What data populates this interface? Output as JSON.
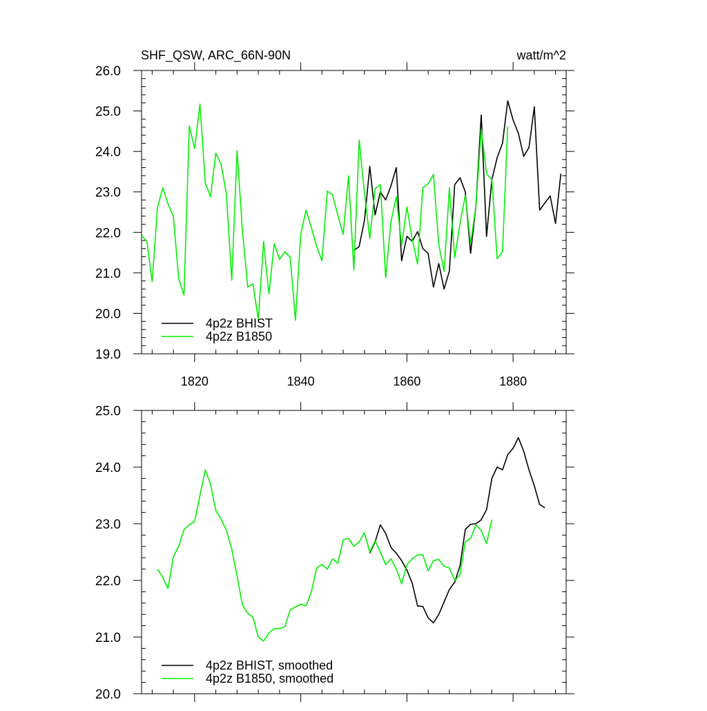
{
  "header": {
    "variable_title": "SHF_QSW, ARC_66N-90N",
    "units": "watt/m^2"
  },
  "colors": {
    "bhist": "#000000",
    "b1850": "#00ee00",
    "axis": "#000000",
    "background": "#ffffff"
  },
  "chart_data": [
    {
      "type": "line",
      "title": "SHF_QSW, ARC_66N-90N",
      "units": "watt/m^2",
      "xlabel": "",
      "ylabel": "",
      "xlim": [
        1810,
        1890
      ],
      "ylim": [
        19.0,
        26.0
      ],
      "xticks": [
        1820,
        1840,
        1860,
        1880
      ],
      "xtick_labels": [
        "1820",
        "1840",
        "1860",
        "1880"
      ],
      "yticks": [
        19,
        20,
        21,
        22,
        23,
        24,
        25,
        26
      ],
      "ytick_labels": [
        "19.0",
        "20.0",
        "21.0",
        "22.0",
        "23.0",
        "24.0",
        "25.0",
        "26.0"
      ],
      "legend_position": "bottom-left",
      "grid": false,
      "series": [
        {
          "name": "4p2z BHIST",
          "color": "#000000",
          "x": [
            1850,
            1851,
            1852,
            1853,
            1854,
            1855,
            1856,
            1857,
            1858,
            1859,
            1860,
            1861,
            1862,
            1863,
            1864,
            1865,
            1866,
            1867,
            1868,
            1869,
            1870,
            1871,
            1872,
            1873,
            1874,
            1875,
            1876,
            1877,
            1878,
            1879,
            1880,
            1881,
            1882,
            1883,
            1884,
            1885,
            1886,
            1887,
            1888,
            1889
          ],
          "values": [
            21.55,
            21.65,
            22.3,
            23.63,
            22.43,
            23.0,
            22.8,
            23.15,
            23.6,
            21.3,
            21.9,
            21.78,
            22.02,
            21.6,
            21.48,
            20.65,
            21.23,
            20.6,
            21.05,
            23.18,
            23.35,
            23.0,
            21.48,
            22.65,
            24.9,
            21.9,
            23.3,
            23.85,
            24.2,
            25.25,
            24.78,
            24.45,
            23.88,
            24.1,
            25.1,
            22.55,
            22.73,
            22.9,
            22.22,
            23.45
          ]
        },
        {
          "name": "4p2z B1850",
          "color": "#00ee00",
          "x": [
            1810,
            1811,
            1812,
            1813,
            1814,
            1815,
            1816,
            1817,
            1818,
            1819,
            1820,
            1821,
            1822,
            1823,
            1824,
            1825,
            1826,
            1827,
            1828,
            1829,
            1830,
            1831,
            1832,
            1833,
            1834,
            1835,
            1836,
            1837,
            1838,
            1839,
            1840,
            1841,
            1842,
            1843,
            1844,
            1845,
            1846,
            1847,
            1848,
            1849,
            1850,
            1851,
            1852,
            1853,
            1854,
            1855,
            1856,
            1857,
            1858,
            1859,
            1860,
            1861,
            1862,
            1863,
            1864,
            1865,
            1866,
            1867,
            1868,
            1869,
            1870,
            1871,
            1872,
            1873,
            1874,
            1875,
            1876,
            1877,
            1878,
            1879
          ],
          "values": [
            21.92,
            21.78,
            20.78,
            22.62,
            23.1,
            22.7,
            22.4,
            20.85,
            20.45,
            24.63,
            24.07,
            25.17,
            23.22,
            22.88,
            23.96,
            23.68,
            22.93,
            20.82,
            24.02,
            22.05,
            20.65,
            20.73,
            19.85,
            21.78,
            20.48,
            21.72,
            21.33,
            21.52,
            21.38,
            19.83,
            21.95,
            22.55,
            22.12,
            21.65,
            21.3,
            23.02,
            22.92,
            22.42,
            21.95,
            23.4,
            21.07,
            24.28,
            22.97,
            21.85,
            23.08,
            23.18,
            20.88,
            22.27,
            22.88,
            21.68,
            22.63,
            21.82,
            21.22,
            23.1,
            23.2,
            23.43,
            21.7,
            21.03,
            23.1,
            21.37,
            22.22,
            22.92,
            21.72,
            22.65,
            24.55,
            23.45,
            23.3,
            21.35,
            21.52,
            24.62
          ]
        }
      ]
    },
    {
      "type": "line",
      "title": "",
      "xlabel": "",
      "ylabel": "",
      "xlim": [
        1810,
        1890
      ],
      "ylim": [
        20.0,
        25.0
      ],
      "xticks": [
        1820,
        1840,
        1860,
        1880
      ],
      "xtick_labels": [],
      "yticks": [
        20,
        21,
        22,
        23,
        24,
        25
      ],
      "ytick_labels": [
        "20.0",
        "21.0",
        "22.0",
        "23.0",
        "24.0",
        "25.0"
      ],
      "legend_position": "bottom-left",
      "grid": false,
      "series": [
        {
          "name": "4p2z BHIST, smoothed",
          "color": "#000000",
          "x": [
            1853,
            1854,
            1855,
            1856,
            1857,
            1858,
            1859,
            1860,
            1861,
            1862,
            1863,
            1864,
            1865,
            1866,
            1867,
            1868,
            1869,
            1870,
            1871,
            1872,
            1873,
            1874,
            1875,
            1876,
            1877,
            1878,
            1879,
            1880,
            1881,
            1882,
            1883,
            1884,
            1885,
            1886
          ],
          "values": [
            22.48,
            22.68,
            22.98,
            22.83,
            22.58,
            22.48,
            22.35,
            22.18,
            21.95,
            21.55,
            21.54,
            21.34,
            21.25,
            21.4,
            21.62,
            21.84,
            21.97,
            22.26,
            22.9,
            22.99,
            23.0,
            23.07,
            23.25,
            23.8,
            24.0,
            23.95,
            24.22,
            24.33,
            24.52,
            24.28,
            23.95,
            23.67,
            23.34,
            23.28
          ]
        },
        {
          "name": "4p2z B1850, smoothed",
          "color": "#00ee00",
          "x": [
            1813,
            1814,
            1815,
            1816,
            1817,
            1818,
            1819,
            1820,
            1821,
            1822,
            1823,
            1824,
            1825,
            1826,
            1827,
            1828,
            1829,
            1830,
            1831,
            1832,
            1833,
            1834,
            1835,
            1836,
            1837,
            1838,
            1839,
            1840,
            1841,
            1842,
            1843,
            1844,
            1845,
            1846,
            1847,
            1848,
            1849,
            1850,
            1851,
            1852,
            1853,
            1854,
            1855,
            1856,
            1857,
            1858,
            1859,
            1860,
            1861,
            1862,
            1863,
            1864,
            1865,
            1866,
            1867,
            1868,
            1869,
            1870,
            1871,
            1872,
            1873,
            1874,
            1875,
            1876
          ],
          "values": [
            22.2,
            22.05,
            21.86,
            22.42,
            22.6,
            22.9,
            22.98,
            23.04,
            23.5,
            23.95,
            23.7,
            23.23,
            23.08,
            22.88,
            22.55,
            22.08,
            21.57,
            21.42,
            21.35,
            21.0,
            20.93,
            21.07,
            21.15,
            21.15,
            21.18,
            21.48,
            21.53,
            21.58,
            21.55,
            21.8,
            22.22,
            22.28,
            22.2,
            22.38,
            22.3,
            22.72,
            22.74,
            22.6,
            22.68,
            22.84,
            22.5,
            22.7,
            22.5,
            22.28,
            22.38,
            22.2,
            21.94,
            22.28,
            22.38,
            22.45,
            22.45,
            22.17,
            22.35,
            22.37,
            22.25,
            22.22,
            22.0,
            22.1,
            22.68,
            22.74,
            22.98,
            22.88,
            22.65,
            23.07
          ]
        }
      ]
    }
  ]
}
